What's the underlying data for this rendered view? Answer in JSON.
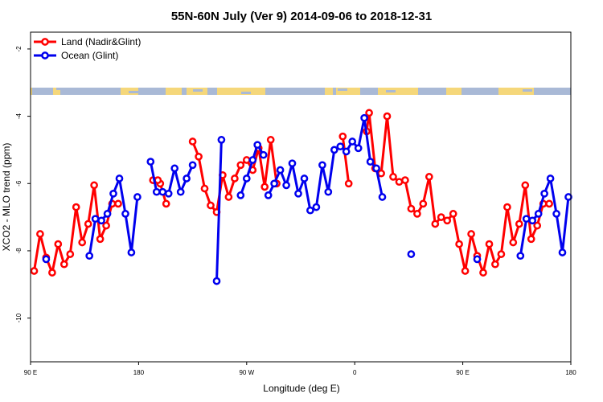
{
  "chart_data": {
    "type": "line",
    "title": "55N-60N July (Ver 9)   2014-09-06 to 2018-12-31",
    "xlabel": "Longitude (deg E)",
    "ylabel": "XCO2 - MLO trend (ppm)",
    "x_ticks": [
      {
        "pos": 90,
        "label": "90 E"
      },
      {
        "pos": 180,
        "label": "180"
      },
      {
        "pos": 270,
        "label": "90 W"
      },
      {
        "pos": 360,
        "label": "0"
      },
      {
        "pos": 450,
        "label": "90 E"
      },
      {
        "pos": 540,
        "label": "180"
      }
    ],
    "y_ticks": [
      {
        "value": -2,
        "label": "-2"
      },
      {
        "value": -4,
        "label": "-4"
      },
      {
        "value": -6,
        "label": "-6"
      },
      {
        "value": -8,
        "label": "-8"
      },
      {
        "value": -10,
        "label": "-10"
      }
    ],
    "xlim": [
      90,
      540
    ],
    "ylim": [
      -11.3,
      -1.5
    ],
    "legend_position": "top-left",
    "colors": {
      "land": "#ff0000",
      "ocean": "#0000ee",
      "land_mask": "#f5d77a",
      "ocean_mask": "#a9b9d6"
    },
    "series": [
      {
        "name": "Land (Nadir&Glint)",
        "color": "#ff0000",
        "segments": [
          [
            [
              93,
              -8.6
            ],
            [
              98,
              -7.5
            ],
            [
              103,
              -8.2
            ],
            [
              108,
              -8.65
            ],
            [
              113,
              -7.8
            ],
            [
              118,
              -8.4
            ],
            [
              123,
              -8.1
            ],
            [
              128,
              -6.7
            ],
            [
              133,
              -7.75
            ],
            [
              138,
              -7.2
            ],
            [
              143,
              -6.05
            ],
            [
              148,
              -7.65
            ],
            [
              153,
              -7.25
            ],
            [
              158,
              -6.6
            ],
            [
              163,
              -6.6
            ]
          ],
          [
            [
              198,
              -6.0
            ],
            [
              203,
              -6.6
            ]
          ],
          [
            [
              225,
              -4.75
            ],
            [
              230,
              -5.2
            ],
            [
              235,
              -6.15
            ],
            [
              240,
              -6.65
            ],
            [
              245,
              -6.85
            ],
            [
              250,
              -5.75
            ],
            [
              255,
              -6.4
            ],
            [
              260,
              -5.85
            ],
            [
              265,
              -5.45
            ],
            [
              270,
              -5.3
            ],
            [
              275,
              -5.6
            ],
            [
              280,
              -4.95
            ],
            [
              285,
              -6.1
            ],
            [
              290,
              -4.7
            ],
            [
              295,
              -6.0
            ]
          ],
          [
            [
              350,
              -4.6
            ],
            [
              355,
              -6.0
            ]
          ],
          [
            [
              370,
              -4.45
            ],
            [
              372,
              -3.9
            ],
            [
              377,
              -5.55
            ],
            [
              382,
              -5.7
            ],
            [
              387,
              -4.0
            ],
            [
              392,
              -5.8
            ],
            [
              397,
              -5.95
            ],
            [
              402,
              -5.9
            ],
            [
              407,
              -6.75
            ],
            [
              412,
              -6.9
            ],
            [
              417,
              -6.6
            ],
            [
              422,
              -5.8
            ],
            [
              427,
              -7.2
            ],
            [
              432,
              -7.0
            ],
            [
              437,
              -7.1
            ],
            [
              442,
              -6.9
            ],
            [
              447,
              -7.8
            ],
            [
              452,
              -8.6
            ],
            [
              457,
              -7.5
            ],
            [
              462,
              -8.15
            ],
            [
              467,
              -8.65
            ],
            [
              472,
              -7.8
            ],
            [
              477,
              -8.4
            ],
            [
              482,
              -8.1
            ],
            [
              487,
              -6.7
            ],
            [
              492,
              -7.75
            ],
            [
              497,
              -7.2
            ],
            [
              502,
              -6.05
            ],
            [
              507,
              -7.65
            ],
            [
              512,
              -7.25
            ],
            [
              517,
              -6.6
            ],
            [
              522,
              -6.6
            ]
          ]
        ],
        "isolated": [
          [
            192,
            -5.9
          ],
          [
            196,
            -5.9
          ]
        ]
      },
      {
        "name": "Ocean (Glint)",
        "color": "#0000ee",
        "segments": [
          [
            [
              103,
              -8.25
            ]
          ],
          [
            [
              139,
              -8.15
            ],
            [
              144,
              -7.05
            ],
            [
              149,
              -7.1
            ],
            [
              154,
              -6.9
            ],
            [
              159,
              -6.3
            ],
            [
              164,
              -5.85
            ],
            [
              169,
              -6.9
            ],
            [
              174,
              -8.05
            ],
            [
              179,
              -6.4
            ]
          ],
          [
            [
              190,
              -5.35
            ],
            [
              195,
              -6.25
            ],
            [
              200,
              -6.25
            ],
            [
              205,
              -6.3
            ],
            [
              210,
              -5.55
            ],
            [
              215,
              -6.25
            ],
            [
              220,
              -5.85
            ],
            [
              225,
              -5.45
            ]
          ],
          [
            [
              245,
              -8.9
            ],
            [
              249,
              -4.7
            ]
          ],
          [
            [
              265,
              -6.35
            ],
            [
              270,
              -5.85
            ],
            [
              275,
              -5.3
            ],
            [
              279,
              -4.85
            ],
            [
              284,
              -5.15
            ]
          ],
          [
            [
              288,
              -6.35
            ],
            [
              293,
              -6.0
            ],
            [
              298,
              -5.6
            ],
            [
              303,
              -6.05
            ],
            [
              308,
              -5.4
            ],
            [
              313,
              -6.3
            ],
            [
              318,
              -5.85
            ],
            [
              323,
              -6.8
            ],
            [
              328,
              -6.7
            ],
            [
              333,
              -5.45
            ],
            [
              338,
              -6.25
            ],
            [
              343,
              -5.0
            ],
            [
              348,
              -4.9
            ],
            [
              353,
              -5.05
            ],
            [
              358,
              -4.75
            ],
            [
              363,
              -4.95
            ],
            [
              368,
              -4.05
            ],
            [
              373,
              -5.35
            ],
            [
              378,
              -5.55
            ],
            [
              383,
              -6.4
            ]
          ],
          [
            [
              407,
              -8.1
            ]
          ],
          [
            [
              462,
              -8.25
            ]
          ],
          [
            [
              498,
              -8.15
            ],
            [
              503,
              -7.05
            ],
            [
              508,
              -7.1
            ],
            [
              513,
              -6.9
            ],
            [
              518,
              -6.3
            ],
            [
              523,
              -5.85
            ],
            [
              528,
              -6.9
            ],
            [
              533,
              -8.05
            ],
            [
              538,
              -6.4
            ]
          ]
        ],
        "isolated": []
      }
    ]
  }
}
